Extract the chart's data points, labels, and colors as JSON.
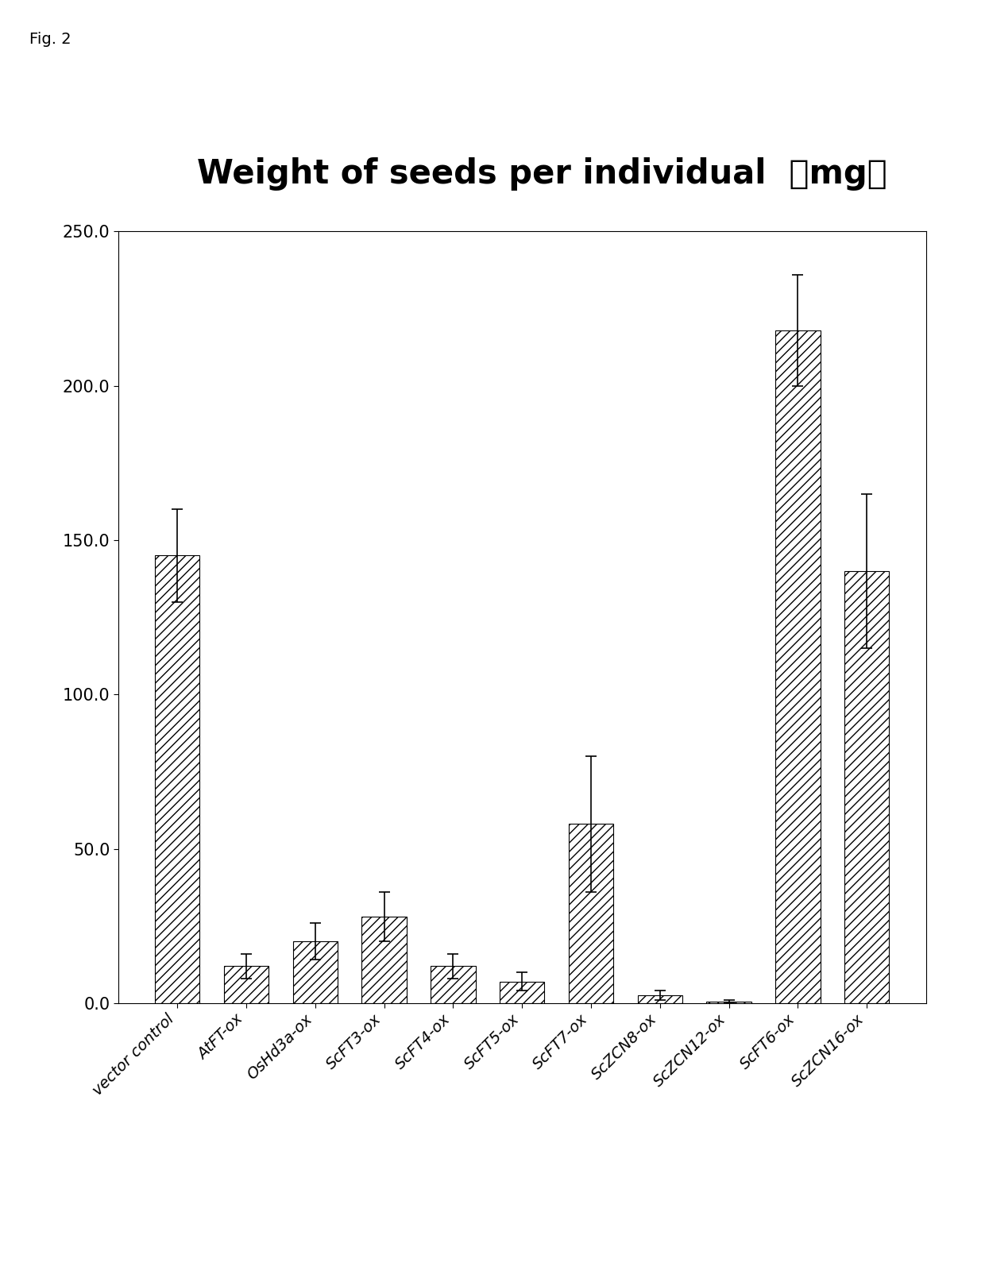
{
  "title": "Weight of seeds per individual  （mg）",
  "categories": [
    "vector control",
    "AtFT-ox",
    "OsHd3a-ox",
    "ScFT3-ox",
    "ScFT4-ox",
    "ScFT5-ox",
    "ScFT7-ox",
    "ScZCN8-ox",
    "ScZCN12-ox",
    "ScFT6-ox",
    "ScZCN16-ox"
  ],
  "values": [
    145.0,
    12.0,
    20.0,
    28.0,
    12.0,
    7.0,
    58.0,
    2.5,
    0.5,
    218.0,
    140.0
  ],
  "errors": [
    15.0,
    4.0,
    6.0,
    8.0,
    4.0,
    3.0,
    22.0,
    1.5,
    0.5,
    18.0,
    25.0
  ],
  "ylim": [
    0,
    250.0
  ],
  "yticks": [
    0.0,
    50.0,
    100.0,
    150.0,
    200.0,
    250.0
  ],
  "hatch": "///",
  "fig_label": "Fig. 2",
  "background_color": "#ffffff",
  "title_fontsize": 30,
  "tick_fontsize": 15,
  "label_fontsize": 14
}
